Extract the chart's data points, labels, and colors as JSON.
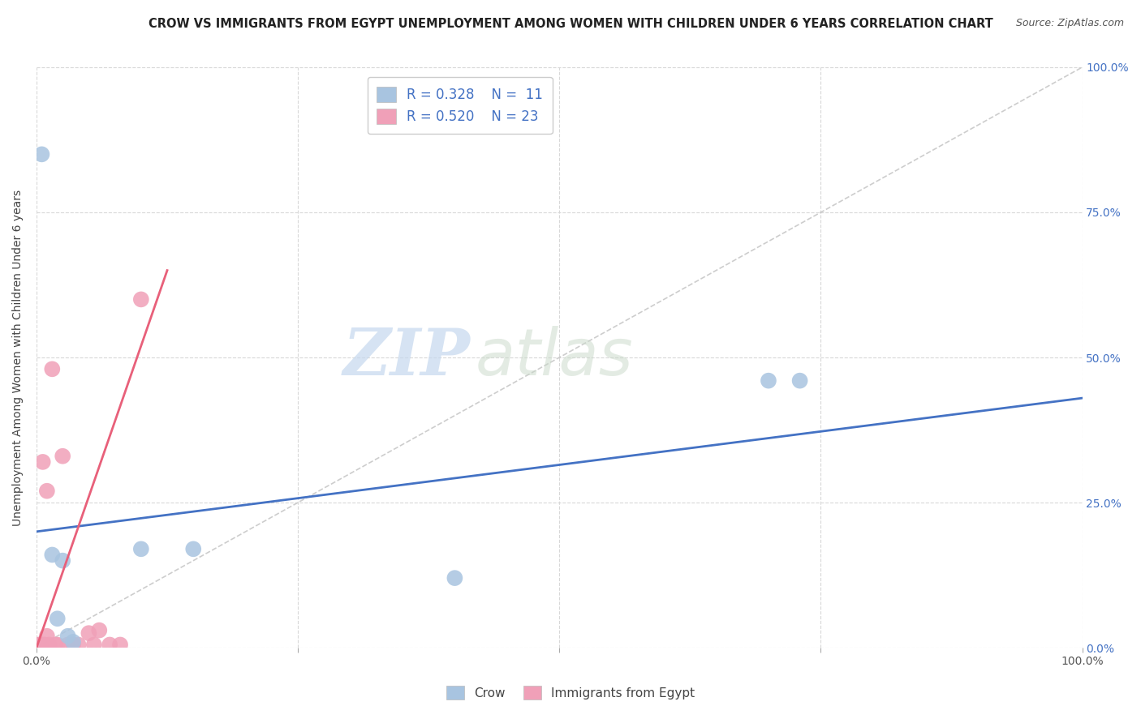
{
  "title": "CROW VS IMMIGRANTS FROM EGYPT UNEMPLOYMENT AMONG WOMEN WITH CHILDREN UNDER 6 YEARS CORRELATION CHART",
  "source": "Source: ZipAtlas.com",
  "ylabel": "Unemployment Among Women with Children Under 6 years",
  "xlim": [
    0,
    100
  ],
  "ylim": [
    0,
    100
  ],
  "xticks": [
    0,
    100
  ],
  "xticklabels": [
    "0.0%",
    "100.0%"
  ],
  "yticks_right": [
    0,
    25,
    50,
    75,
    100
  ],
  "yticklabels_right": [
    "0.0%",
    "25.0%",
    "50.0%",
    "75.0%",
    "100.0%"
  ],
  "crow_color": "#a8c4e0",
  "egypt_color": "#f0a0b8",
  "crow_line_color": "#4472c4",
  "egypt_line_color": "#e8607a",
  "crow_R": 0.328,
  "crow_N": 11,
  "egypt_R": 0.52,
  "egypt_N": 23,
  "watermark_zip": "ZIP",
  "watermark_atlas": "atlas",
  "crow_points_x": [
    0.5,
    1.5,
    2.0,
    2.5,
    3.0,
    3.5,
    10.0,
    15.0,
    70.0,
    73.0,
    40.0
  ],
  "crow_points_y": [
    85.0,
    16.0,
    5.0,
    15.0,
    2.0,
    1.0,
    17.0,
    17.0,
    46.0,
    46.0,
    12.0
  ],
  "egypt_points_x": [
    0.2,
    0.3,
    0.4,
    0.5,
    0.6,
    0.7,
    0.8,
    1.0,
    1.0,
    1.2,
    1.5,
    1.8,
    2.0,
    2.5,
    3.0,
    3.5,
    4.0,
    5.0,
    5.5,
    6.0,
    7.0,
    8.0,
    10.0
  ],
  "egypt_points_y": [
    0.5,
    0.5,
    0.5,
    0.5,
    32.0,
    0.5,
    0.5,
    2.0,
    27.0,
    0.5,
    48.0,
    0.5,
    0.5,
    33.0,
    0.5,
    0.5,
    0.5,
    2.5,
    0.5,
    3.0,
    0.5,
    0.5,
    60.0
  ],
  "crow_line_slope": 0.23,
  "crow_line_intercept": 20.0,
  "egypt_line_x_end": 12.5,
  "egypt_line_slope": 5.2,
  "egypt_line_intercept": 0.0,
  "ref_line_color": "#c8c8c8",
  "background_color": "#ffffff",
  "grid_color": "#d8d8d8",
  "bottom_tick_x": [
    0,
    25,
    50,
    75,
    100
  ],
  "bottom_ticklabels": [
    "",
    "",
    "",
    "",
    ""
  ]
}
